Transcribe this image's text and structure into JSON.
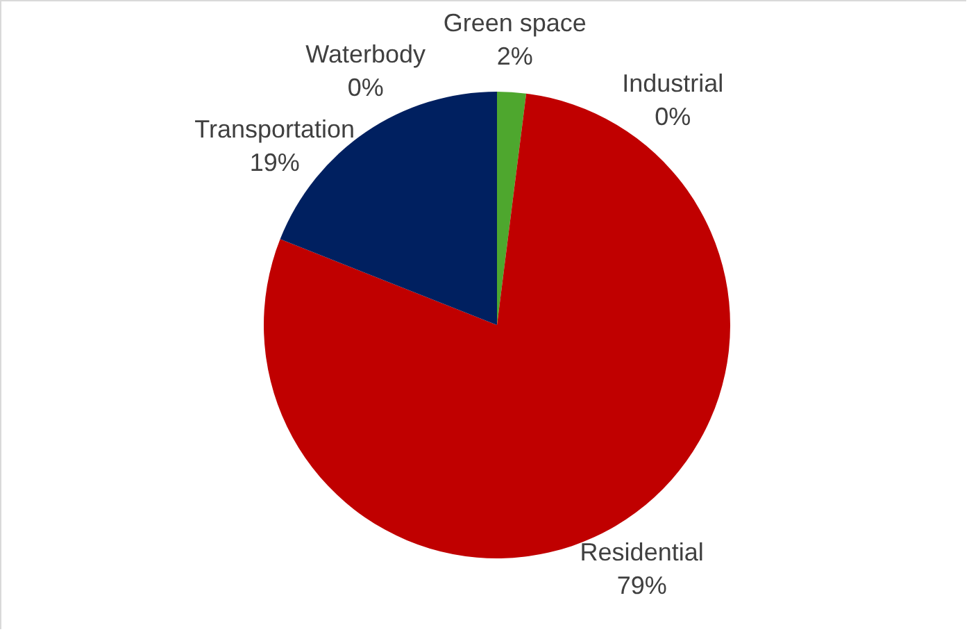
{
  "chart_data": {
    "type": "pie",
    "categories": [
      "Green space",
      "Industrial",
      "Residential",
      "Transportation",
      "Waterbody"
    ],
    "values": [
      2,
      0,
      79,
      19,
      0
    ],
    "colors": [
      "#4ea72e",
      "#7f7f7f",
      "#c00000",
      "#002060",
      "#00b0f0"
    ],
    "value_labels": [
      "2%",
      "0%",
      "79%",
      "19%",
      "0%"
    ]
  }
}
